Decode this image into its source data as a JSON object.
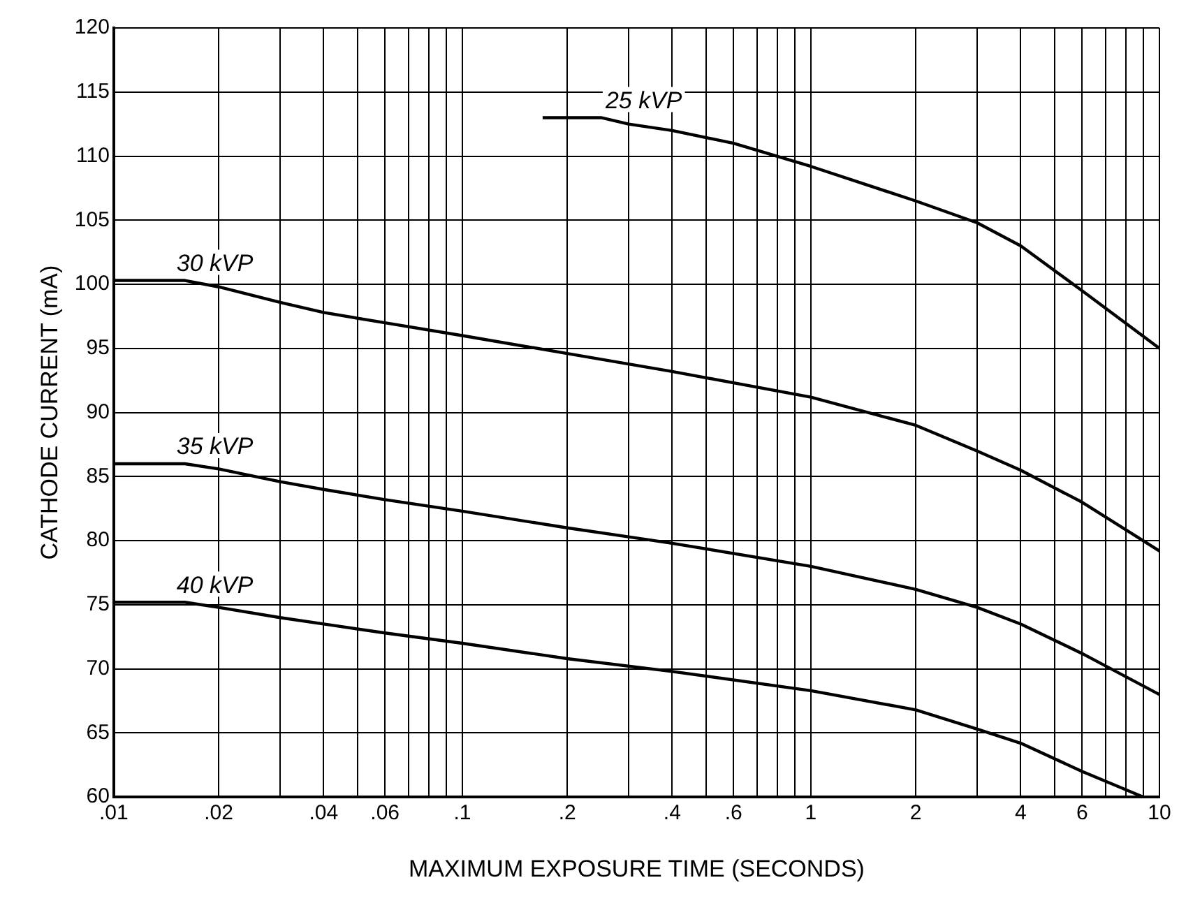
{
  "chart_data": {
    "type": "line",
    "xlabel": "MAXIMUM EXPOSURE TIME (SECONDS)",
    "ylabel": "CATHODE CURRENT (mA)",
    "log": "x",
    "grid": true,
    "legend": false,
    "marker": "none",
    "line_style": "solid",
    "xlim": [
      0.01,
      10
    ],
    "ylim": [
      60,
      120
    ],
    "xticks": [
      {
        "value": 0.01,
        "label": ".01"
      },
      {
        "value": 0.02,
        "label": ".02"
      },
      {
        "value": 0.03,
        "label": null
      },
      {
        "value": 0.04,
        "label": ".04"
      },
      {
        "value": 0.05,
        "label": null
      },
      {
        "value": 0.06,
        "label": ".06"
      },
      {
        "value": 0.07,
        "label": null
      },
      {
        "value": 0.08,
        "label": null
      },
      {
        "value": 0.09,
        "label": null
      },
      {
        "value": 0.1,
        "label": ".1"
      },
      {
        "value": 0.2,
        "label": ".2"
      },
      {
        "value": 0.3,
        "label": null
      },
      {
        "value": 0.4,
        "label": ".4"
      },
      {
        "value": 0.5,
        "label": null
      },
      {
        "value": 0.6,
        "label": ".6"
      },
      {
        "value": 0.7,
        "label": null
      },
      {
        "value": 0.8,
        "label": null
      },
      {
        "value": 0.9,
        "label": null
      },
      1,
      2,
      {
        "value": 3,
        "label": null
      },
      4,
      {
        "value": 5,
        "label": null
      },
      6,
      {
        "value": 7,
        "label": null
      },
      {
        "value": 8,
        "label": null
      },
      {
        "value": 9,
        "label": null
      },
      10
    ],
    "yticks": [
      60,
      65,
      70,
      75,
      80,
      85,
      90,
      95,
      100,
      105,
      110,
      115,
      120
    ],
    "series": [
      {
        "name": "25 kVP",
        "color": "#000000",
        "x": [
          0.17,
          0.25,
          0.3,
          0.4,
          0.6,
          1,
          2,
          3,
          4,
          6,
          10
        ],
        "values": [
          113,
          113,
          112.5,
          112,
          111,
          109.2,
          106.5,
          104.8,
          103,
          99.5,
          95
        ]
      },
      {
        "name": "30 kVP",
        "color": "#000000",
        "x": [
          0.01,
          0.016,
          0.02,
          0.03,
          0.04,
          0.06,
          0.1,
          0.2,
          0.4,
          1,
          2,
          3,
          4,
          6,
          10
        ],
        "values": [
          100.3,
          100.3,
          99.8,
          98.6,
          97.8,
          97,
          96,
          94.6,
          93.2,
          91.2,
          89,
          87,
          85.5,
          83,
          79.2
        ]
      },
      {
        "name": "35 kVP",
        "color": "#000000",
        "x": [
          0.01,
          0.016,
          0.02,
          0.03,
          0.04,
          0.06,
          0.1,
          0.2,
          0.3,
          0.4,
          1,
          2,
          3,
          4,
          6,
          10
        ],
        "values": [
          86,
          86,
          85.6,
          84.6,
          84,
          83.2,
          82.3,
          81,
          80.3,
          79.8,
          78,
          76.2,
          74.8,
          73.5,
          71.2,
          68
        ]
      },
      {
        "name": "40 kVP",
        "color": "#000000",
        "x": [
          0.01,
          0.016,
          0.02,
          0.03,
          0.04,
          0.06,
          0.1,
          0.2,
          0.4,
          1,
          2,
          3,
          4,
          6,
          9
        ],
        "values": [
          75.2,
          75.2,
          74.8,
          74,
          73.5,
          72.8,
          72,
          70.8,
          69.8,
          68.3,
          66.8,
          65.3,
          64.2,
          62,
          60
        ]
      }
    ]
  }
}
